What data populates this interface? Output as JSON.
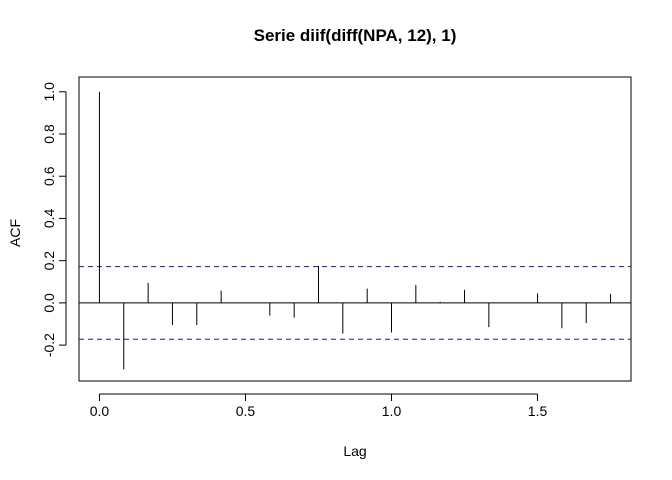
{
  "chart_data": {
    "type": "bar",
    "title": "Serie diif(diff(NPA, 12), 1)",
    "xlabel": "Lag",
    "ylabel": "ACF",
    "xlim": [
      -0.07,
      1.82
    ],
    "ylim": [
      -0.37,
      1.07
    ],
    "x_ticks": [
      {
        "value": 0.0,
        "label": "0.0"
      },
      {
        "value": 0.5,
        "label": "0.5"
      },
      {
        "value": 1.0,
        "label": "1.0"
      },
      {
        "value": 1.5,
        "label": "1.5"
      }
    ],
    "y_ticks": [
      {
        "value": -0.2,
        "label": "-0.2"
      },
      {
        "value": 0.0,
        "label": "0.0"
      },
      {
        "value": 0.2,
        "label": "0.2"
      },
      {
        "value": 0.4,
        "label": "0.4"
      },
      {
        "value": 0.6,
        "label": "0.6"
      },
      {
        "value": 0.8,
        "label": "0.8"
      },
      {
        "value": 1.0,
        "label": "1.0"
      }
    ],
    "confidence_bound": 0.172,
    "x": [
      0.0,
      0.0833,
      0.1667,
      0.25,
      0.3333,
      0.4167,
      0.5,
      0.5833,
      0.6667,
      0.75,
      0.8333,
      0.9167,
      1.0,
      1.0833,
      1.1667,
      1.25,
      1.3333,
      1.4167,
      1.5,
      1.5833,
      1.6667,
      1.75
    ],
    "values": [
      1.0,
      -0.315,
      0.095,
      -0.105,
      -0.105,
      0.058,
      0.0,
      -0.06,
      -0.07,
      0.175,
      -0.145,
      0.068,
      -0.14,
      0.085,
      0.005,
      0.062,
      -0.115,
      0.0,
      0.045,
      -0.12,
      -0.095,
      0.042
    ],
    "grid": false,
    "colors": {
      "bars": "#000000",
      "bounds": "#1a1a8a",
      "zero_line": "#000000"
    }
  }
}
